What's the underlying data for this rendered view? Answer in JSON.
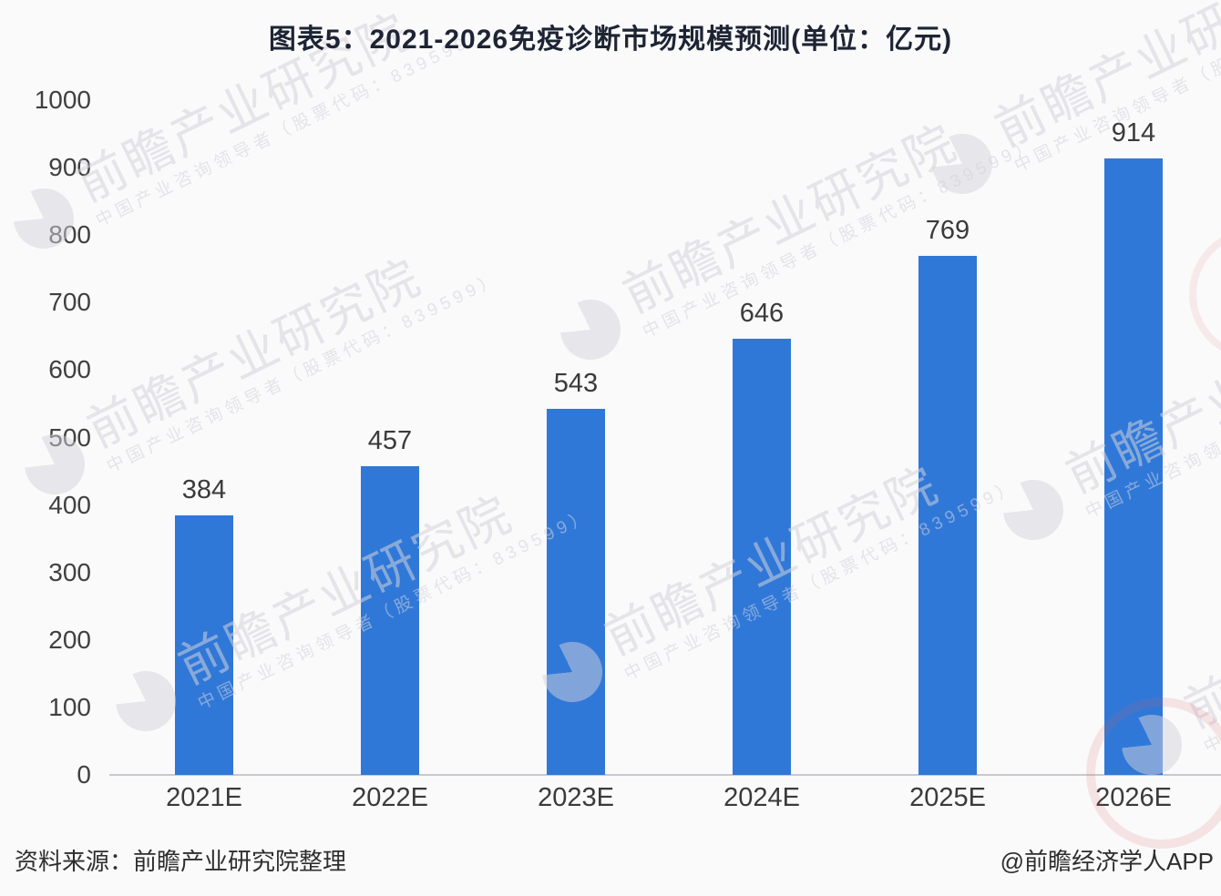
{
  "chart_data": {
    "type": "bar",
    "title": "图表5：2021-2026免疫诊断市场规模预测(单位：亿元)",
    "categories": [
      "2021E",
      "2022E",
      "2023E",
      "2024E",
      "2025E",
      "2026E"
    ],
    "values": [
      384,
      457,
      543,
      646,
      769,
      914
    ],
    "xlabel": "",
    "ylabel": "",
    "unit": "亿元",
    "ylim": [
      0,
      1000
    ],
    "ytick_step": 100,
    "grid": false,
    "legend_position": "none",
    "bar_color": "#3078d8"
  },
  "footer": {
    "source": "资料来源：前瞻产业研究院整理",
    "credit": "@前瞻经济学人APP"
  },
  "watermark": {
    "logo_icon": "pie-chart-logo-icon",
    "main": "前瞻产业研究院",
    "sub": "中国产业咨询领导者（股票代码：839599）"
  },
  "colors": {
    "bar": "#3078d8",
    "axis_line": "#c9c9cd",
    "text": "#3a3a3a",
    "title_text": "#1d2433",
    "background": "#fafafb",
    "watermark_gray": "#d5d5dc",
    "stamp_red": "#dd5c5c"
  }
}
